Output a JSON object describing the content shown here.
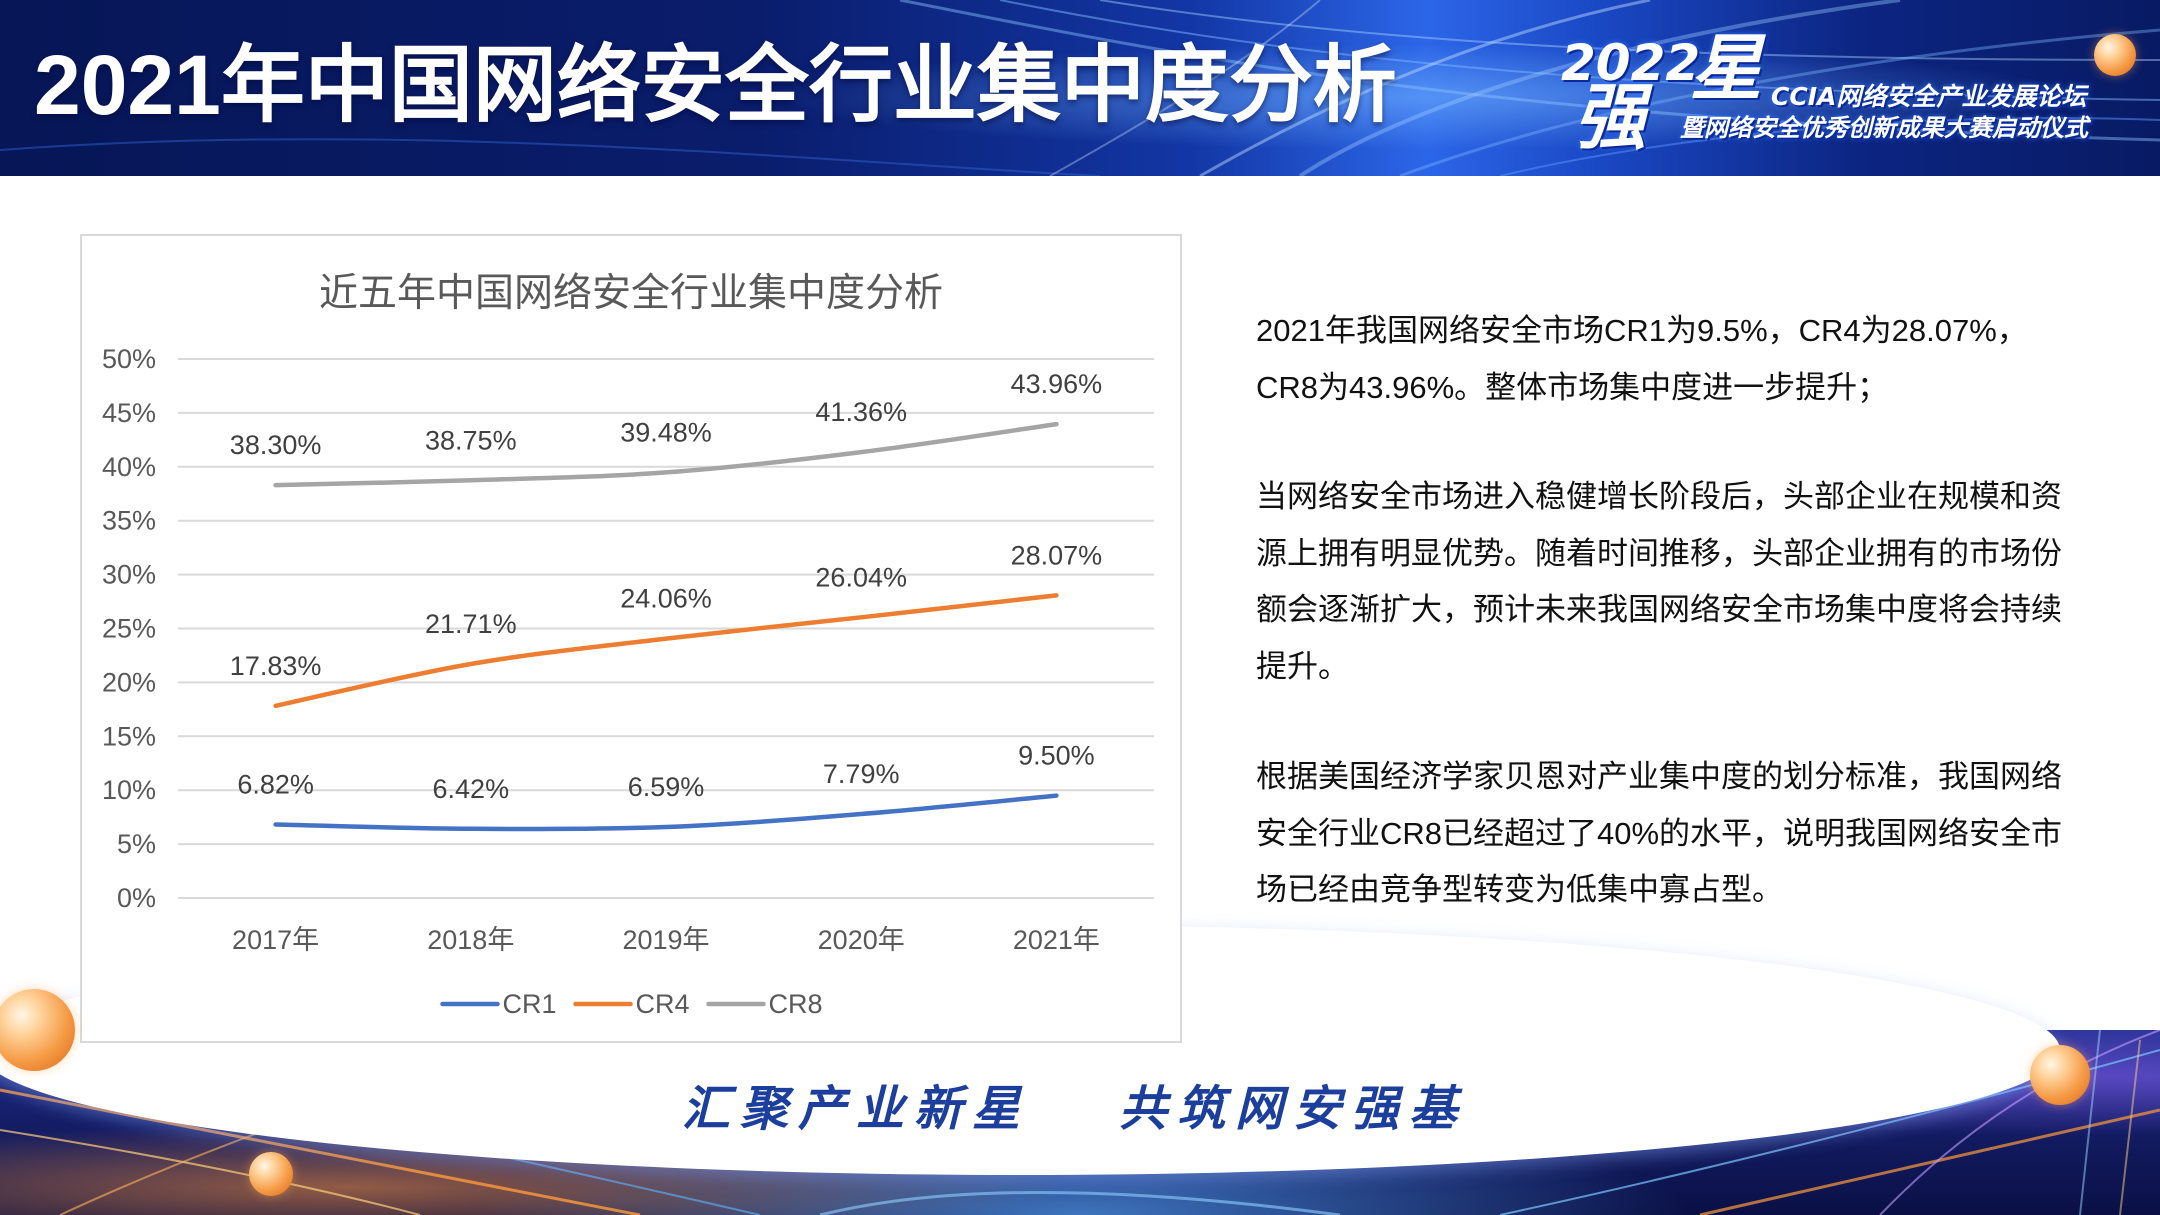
{
  "slide": {
    "title": "2021年中国网络安全行业集中度分析"
  },
  "logo": {
    "year": "2022",
    "char_left": "强",
    "char_right": "星",
    "line_1": "CCIA网络安全产业发展论坛",
    "line_2": "暨网络安全优秀创新成果大赛启动仪式"
  },
  "chart_data": {
    "type": "line",
    "title": "近五年中国网络安全行业集中度分析",
    "categories": [
      "2017年",
      "2018年",
      "2019年",
      "2020年",
      "2021年"
    ],
    "ylim": [
      0,
      50
    ],
    "y_ticks": [
      0,
      5,
      10,
      15,
      20,
      25,
      30,
      35,
      40,
      45,
      50
    ],
    "y_tick_suffix": "%",
    "data_label_suffix": "%",
    "grid": true,
    "smooth": true,
    "legend": "bottom",
    "series": [
      {
        "name": "CR1",
        "color": "#4472C4",
        "values": [
          6.82,
          6.42,
          6.59,
          7.79,
          9.5
        ]
      },
      {
        "name": "CR4",
        "color": "#ED7D31",
        "values": [
          17.83,
          21.71,
          24.06,
          26.04,
          28.07
        ]
      },
      {
        "name": "CR8",
        "color": "#A5A5A5",
        "values": [
          38.3,
          38.75,
          39.48,
          41.36,
          43.96
        ]
      }
    ]
  },
  "analysis": {
    "paragraphs": [
      {
        "lines": [
          "2021年我国网络安全市场CR1为9.5%，CR4为28.07%，",
          "CR8为43.96%。整体市场集中度进一步提升；"
        ]
      },
      {
        "lines": [
          "当网络安全市场进入稳健增长阶段后，头部企业在规模和资",
          "源上拥有明显优势。随着时间推移，头部企业拥有的市场份",
          "额会逐渐扩大，预计未来我国网络安全市场集中度将会持续",
          "提升。"
        ]
      },
      {
        "lines": [
          "根据美国经济学家贝恩对产业集中度的划分标准，我国网络",
          "安全行业CR8已经超过了40%的水平，说明我国网络安全市",
          "场已经由竞争型转变为低集中寡占型。"
        ]
      }
    ]
  },
  "slogan": {
    "left": "汇聚产业新星",
    "right": "共筑网安强基"
  },
  "colors": {
    "header_bg": "#0a1d6c",
    "slogan": "#1c3f9e",
    "accent_orange": "#f59a45",
    "gridline": "#d9d9d9"
  }
}
